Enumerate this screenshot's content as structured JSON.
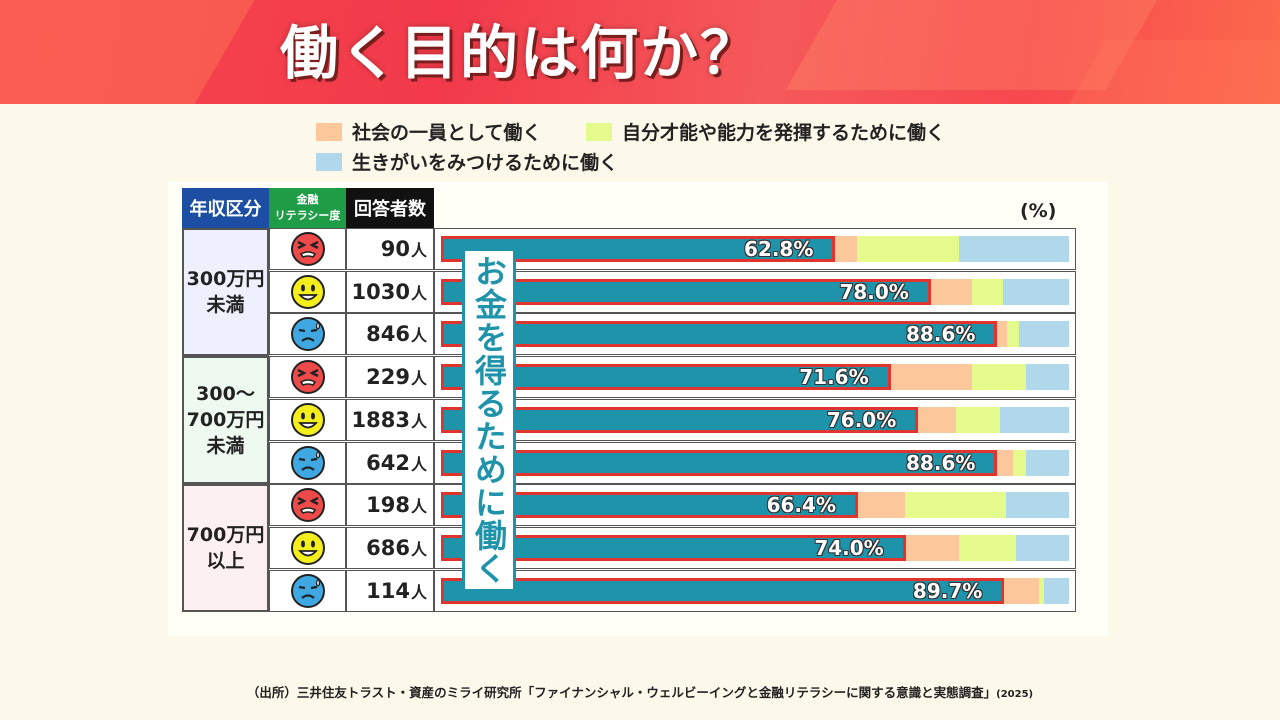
{
  "title": "働く目的は何か？",
  "legend": [
    {
      "label": "社会の一員として働く",
      "color": "#fcc89b"
    },
    {
      "label": "自分才能や能力を発揮するために働く",
      "color": "#e5fa8c"
    },
    {
      "label": "生きがいをみつけるために働く",
      "color": "#b1d8ea"
    }
  ],
  "headers": {
    "income": "年収区分",
    "literacy": "金融\nリテラシー度",
    "respondents": "回答者数"
  },
  "groups": [
    {
      "label": "300万円\n未満",
      "bg": "#eef1fd"
    },
    {
      "label": "300～\n700万円\n未満",
      "bg": "#eef9ef"
    },
    {
      "label": "700万円\n以上",
      "bg": "#fdf0f0"
    }
  ],
  "respondent_unit": "人",
  "unit_label": "(%)",
  "money_label": "お金を得るために働く",
  "face_icons": {
    "low": "angry-face-icon",
    "mid": "smiling-face-icon",
    "high": "worried-face-icon"
  },
  "colors": {
    "money": "#1f93aa",
    "money_border": "#e0342f",
    "header_blue": "#1c4fa3",
    "header_green": "#1e9c46",
    "header_black": "#111111"
  },
  "chart_data": {
    "type": "bar",
    "stacked": true,
    "orientation": "horizontal",
    "title": "働く目的は何か？",
    "xlim": [
      0,
      100
    ],
    "unit": "%",
    "categories": [
      {
        "income": "300万円未満",
        "literacy": "low",
        "respondents": "90"
      },
      {
        "income": "300万円未満",
        "literacy": "mid",
        "respondents": "1030"
      },
      {
        "income": "300万円未満",
        "literacy": "high",
        "respondents": "846"
      },
      {
        "income": "300～700万円未満",
        "literacy": "low",
        "respondents": "229"
      },
      {
        "income": "300～700万円未満",
        "literacy": "mid",
        "respondents": "1883"
      },
      {
        "income": "300～700万円未満",
        "literacy": "high",
        "respondents": "642"
      },
      {
        "income": "700万円以上",
        "literacy": "low",
        "respondents": "198"
      },
      {
        "income": "700万円以上",
        "literacy": "mid",
        "respondents": "686"
      },
      {
        "income": "700万円以上",
        "literacy": "high",
        "respondents": "114"
      }
    ],
    "series": [
      {
        "name": "お金を得るために働く",
        "values": [
          62.8,
          78.0,
          88.6,
          71.6,
          76.0,
          88.6,
          66.4,
          74.0,
          89.7
        ]
      },
      {
        "name": "社会の一員として働く",
        "values": [
          3.5,
          6.5,
          1.5,
          13.0,
          6.0,
          2.5,
          7.5,
          8.5,
          5.5
        ]
      },
      {
        "name": "自分才能や能力を発揮するために働く",
        "values": [
          16.2,
          5.0,
          2.0,
          8.5,
          7.0,
          2.0,
          16.0,
          9.0,
          0.8
        ]
      },
      {
        "name": "生きがいをみつけるために働く",
        "values": [
          17.5,
          10.5,
          7.9,
          6.9,
          11.0,
          6.9,
          10.1,
          8.5,
          4.0
        ]
      }
    ],
    "pct_labels": [
      "62.8%",
      "78.0%",
      "88.6%",
      "71.6%",
      "76.0%",
      "88.6%",
      "66.4%",
      "74.0%",
      "89.7%"
    ]
  },
  "source": {
    "text": "（出所）三井住友トラスト・資産のミライ研究所「ファイナンシャル・ウェルビーイングと金融リテラシーに関する意識と実態調査」",
    "year": "(2025)"
  }
}
